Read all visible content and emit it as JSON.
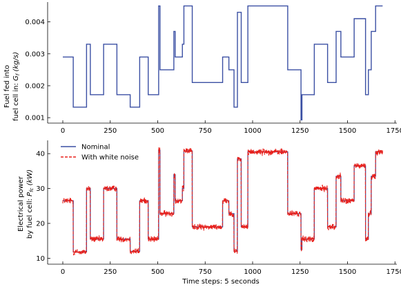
{
  "chart_data": [
    {
      "type": "line",
      "ylabel_line1": "Fuel fed into",
      "ylabel_line2": "fuel cell in: ",
      "ylabel_symbol": "G",
      "ylabel_sub": "f",
      "ylabel_unit": " (kg/s)",
      "xlim": [
        -80,
        1760
      ],
      "ylim": [
        0.00083,
        0.00462
      ],
      "x_ticks": [
        0,
        250,
        500,
        750,
        1000,
        1250,
        1500,
        1750
      ],
      "y_ticks": [
        0.001,
        0.002,
        0.003,
        0.004
      ],
      "y_tick_labels": [
        "0.001",
        "0.002",
        "0.003",
        "0.004"
      ],
      "series": [
        {
          "color": "#3a4fa3",
          "steps": [
            [
              0,
              0.0029
            ],
            [
              55,
              0.00133
            ],
            [
              125,
              0.0033
            ],
            [
              145,
              0.00172
            ],
            [
              215,
              0.0033
            ],
            [
              285,
              0.00172
            ],
            [
              355,
              0.00133
            ],
            [
              405,
              0.0029
            ],
            [
              450,
              0.00172
            ],
            [
              505,
              0.0045
            ],
            [
              512,
              0.0025
            ],
            [
              585,
              0.0037
            ],
            [
              592,
              0.0029
            ],
            [
              630,
              0.0033
            ],
            [
              638,
              0.0045
            ],
            [
              682,
              0.0021
            ],
            [
              842,
              0.0029
            ],
            [
              875,
              0.0025
            ],
            [
              902,
              0.00133
            ],
            [
              920,
              0.0043
            ],
            [
              940,
              0.0021
            ],
            [
              975,
              0.0045
            ],
            [
              1185,
              0.0025
            ],
            [
              1255,
              0.00093
            ],
            [
              1260,
              0.00172
            ],
            [
              1325,
              0.0033
            ],
            [
              1395,
              0.0021
            ],
            [
              1440,
              0.0037
            ],
            [
              1465,
              0.0029
            ],
            [
              1535,
              0.0041
            ],
            [
              1595,
              0.00172
            ],
            [
              1610,
              0.0025
            ],
            [
              1625,
              0.0037
            ],
            [
              1648,
              0.0045
            ],
            [
              1685,
              0.0045
            ]
          ]
        }
      ]
    },
    {
      "type": "line",
      "ylabel_line1": "Electrical power",
      "ylabel_line2": "by fuel cell: ",
      "ylabel_symbol": "P",
      "ylabel_sub": "fc",
      "ylabel_unit": " (kW)",
      "xlabel": "Time steps: 5 seconds",
      "xlim": [
        -80,
        1760
      ],
      "ylim": [
        8.3,
        43.8
      ],
      "x_ticks": [
        0,
        250,
        500,
        750,
        1000,
        1250,
        1500,
        1750
      ],
      "x_tick_labels": [
        "0",
        "250",
        "500",
        "750",
        "1000",
        "1250",
        "1500",
        "1750"
      ],
      "y_ticks": [
        10,
        20,
        30,
        40
      ],
      "y_tick_labels": [
        "10",
        "20",
        "30",
        "40"
      ],
      "legend": {
        "position": "top-left",
        "items": [
          "Nominal",
          "With white noise"
        ]
      },
      "series": [
        {
          "name": "Nominal",
          "color": "#3a4fa3",
          "style": "solid",
          "steps": [
            [
              0,
              26.5
            ],
            [
              55,
              11.8
            ],
            [
              125,
              30
            ],
            [
              145,
              15.5
            ],
            [
              215,
              30
            ],
            [
              285,
              15.5
            ],
            [
              355,
              12
            ],
            [
              405,
              26.5
            ],
            [
              450,
              15.5
            ],
            [
              505,
              41
            ],
            [
              512,
              22.8
            ],
            [
              585,
              34
            ],
            [
              592,
              26.5
            ],
            [
              630,
              30
            ],
            [
              638,
              40.8
            ],
            [
              682,
              19
            ],
            [
              842,
              26.5
            ],
            [
              875,
              22.8
            ],
            [
              902,
              12
            ],
            [
              920,
              38.5
            ],
            [
              940,
              19
            ],
            [
              975,
              40.5
            ],
            [
              1185,
              22.8
            ],
            [
              1255,
              12.5
            ],
            [
              1260,
              15.5
            ],
            [
              1325,
              30
            ],
            [
              1395,
              19
            ],
            [
              1440,
              33.5
            ],
            [
              1465,
              26.5
            ],
            [
              1535,
              36.5
            ],
            [
              1595,
              15.5
            ],
            [
              1610,
              22.8
            ],
            [
              1625,
              33.5
            ],
            [
              1648,
              40.5
            ],
            [
              1685,
              40.5
            ]
          ]
        },
        {
          "name": "With white noise",
          "color": "#e8211c",
          "style": "dashed",
          "noise_amplitude": 0.6
        }
      ]
    }
  ]
}
